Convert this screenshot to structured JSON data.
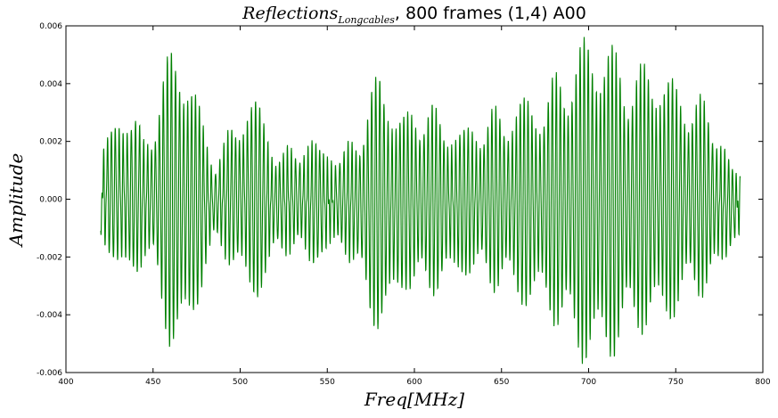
{
  "chart_data": {
    "type": "line",
    "title": {
      "main": "Reflections",
      "subscript": "Longcables",
      "rest": ", 800 frames (1,4) A00"
    },
    "xlabel": "Freq[MHz]",
    "ylabel": "Amplitude",
    "xlim": [
      400,
      800
    ],
    "ylim": [
      -0.006,
      0.006
    ],
    "xticks": [
      400,
      450,
      500,
      550,
      600,
      650,
      700,
      750,
      800
    ],
    "xtick_labels": [
      "400",
      "450",
      "500",
      "550",
      "600",
      "650",
      "700",
      "750",
      "800"
    ],
    "yticks": [
      -0.006,
      -0.004,
      -0.002,
      0.0,
      0.002,
      0.004,
      0.006
    ],
    "ytick_labels": [
      "-0.006",
      "-0.004",
      "-0.002",
      "0.000",
      "0.002",
      "0.004",
      "0.006"
    ],
    "grid": false,
    "series": [
      {
        "color": "#008000",
        "x_range": [
          420,
          787
        ],
        "envelope": {
          "freq": [
            420,
            425,
            430,
            435,
            440,
            445,
            450,
            455,
            460,
            465,
            470,
            475,
            480,
            485,
            490,
            495,
            500,
            505,
            510,
            515,
            520,
            525,
            530,
            535,
            540,
            545,
            550,
            555,
            560,
            565,
            570,
            575,
            580,
            585,
            590,
            595,
            600,
            605,
            610,
            615,
            620,
            625,
            630,
            635,
            640,
            645,
            650,
            655,
            660,
            665,
            670,
            675,
            680,
            685,
            690,
            695,
            700,
            705,
            710,
            715,
            720,
            725,
            730,
            735,
            740,
            745,
            750,
            755,
            760,
            765,
            770,
            775,
            780,
            787
          ],
          "upper": [
            0.0012,
            0.0022,
            0.003,
            0.0032,
            0.0028,
            0.0018,
            0.0028,
            0.0042,
            0.0052,
            0.0055,
            0.0048,
            0.0036,
            0.0022,
            0.0014,
            0.0016,
            0.0024,
            0.003,
            0.0036,
            0.0034,
            0.0026,
            0.0018,
            0.0014,
            0.0016,
            0.002,
            0.002,
            0.0018,
            0.0016,
            0.0015,
            0.0015,
            0.002,
            0.0028,
            0.0038,
            0.0044,
            0.004,
            0.0032,
            0.0028,
            0.0032,
            0.0034,
            0.0032,
            0.0028,
            0.0026,
            0.0024,
            0.0024,
            0.0026,
            0.0028,
            0.003,
            0.003,
            0.0032,
            0.0034,
            0.0036,
            0.0034,
            0.0036,
            0.0042,
            0.0046,
            0.005,
            0.0054,
            0.0058,
            0.0058,
            0.0056,
            0.0052,
            0.0048,
            0.0046,
            0.0046,
            0.0048,
            0.0048,
            0.0044,
            0.004,
            0.0038,
            0.0036,
            0.0034,
            0.003,
            0.0024,
            0.0014,
            0.0004
          ],
          "lower": [
            -0.001,
            -0.0018,
            -0.0026,
            -0.003,
            -0.0026,
            -0.0018,
            -0.0026,
            -0.004,
            -0.0052,
            -0.0056,
            -0.005,
            -0.0038,
            -0.0024,
            -0.0016,
            -0.0016,
            -0.0022,
            -0.0028,
            -0.0034,
            -0.0034,
            -0.0028,
            -0.002,
            -0.0016,
            -0.0016,
            -0.002,
            -0.0022,
            -0.002,
            -0.0018,
            -0.0016,
            -0.0016,
            -0.0022,
            -0.0032,
            -0.0042,
            -0.0046,
            -0.0044,
            -0.0036,
            -0.003,
            -0.0032,
            -0.0034,
            -0.0032,
            -0.003,
            -0.0028,
            -0.0026,
            -0.0026,
            -0.0026,
            -0.0028,
            -0.003,
            -0.003,
            -0.0032,
            -0.0036,
            -0.0038,
            -0.0036,
            -0.0038,
            -0.0042,
            -0.0048,
            -0.0052,
            -0.0056,
            -0.0058,
            -0.006,
            -0.0058,
            -0.0054,
            -0.005,
            -0.0048,
            -0.0046,
            -0.0046,
            -0.0046,
            -0.0044,
            -0.004,
            -0.0036,
            -0.0034,
            -0.0032,
            -0.003,
            -0.0026,
            -0.0018,
            -0.0008
          ]
        },
        "carrier_period_mhz": 2.3
      }
    ]
  }
}
